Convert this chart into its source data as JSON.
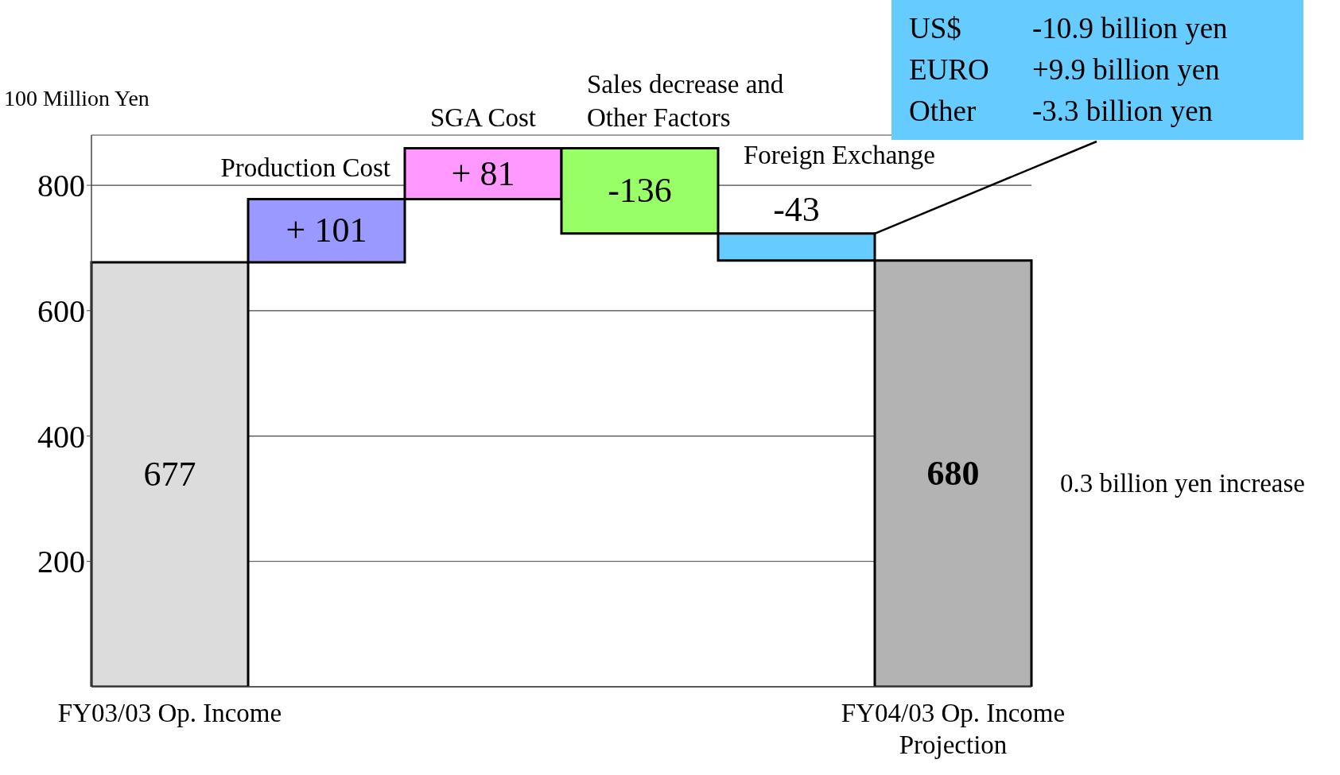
{
  "chart_data": {
    "type": "bar",
    "ylabel": "100 Million Yen",
    "categories": [
      "FY03/03 Op. Income",
      "Production Cost",
      "SGA Cost",
      "Sales decrease and Other Factors",
      "Foreign Exchange",
      "FY04/03 Op. Income Projection"
    ],
    "values": [
      677,
      101,
      81,
      -136,
      -43,
      680
    ],
    "base": [
      0,
      677,
      778,
      859,
      723,
      0
    ],
    "colors": [
      "#dcdcdc",
      "#9999ff",
      "#ff99ff",
      "#99ff66",
      "#66ccff",
      "#b3b3b3"
    ],
    "value_labels": [
      "677",
      "+ 101",
      "+ 81",
      "-136",
      "-43",
      "680"
    ],
    "ylim": [
      0,
      880
    ],
    "yticks": [
      200,
      400,
      600,
      800
    ],
    "grid": "y",
    "annotations": [
      "US$ -10.9 billion yen",
      "EURO +9.9 billion yen",
      "Other -3.3 billion yen",
      "0.3 billion yen increase"
    ]
  }
}
